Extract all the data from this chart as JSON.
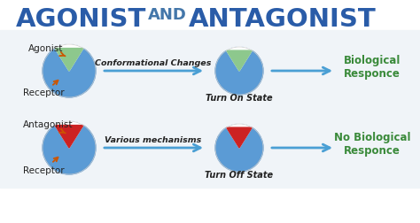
{
  "title_agonist": "AGONIST",
  "title_and": "AND",
  "title_antagonist": "ANTAGONIST",
  "title_color": "#2a5ca8",
  "title_color_and": "#4477aa",
  "bg_color": "#ffffff",
  "circle_color": "#5b9bd5",
  "agonist_triangle_color": "#8dc88d",
  "antagonist_triangle_color": "#cc2222",
  "arrow_color": "#4a9fd4",
  "label_arrow_color": "#cc5500",
  "bio_response_color": "#3a8a3a",
  "text_color_black": "#222222",
  "row1_label_agonist": "Agonist",
  "row1_label_receptor": "Receptor",
  "row2_label_antagonist": "Antagonist",
  "row2_label_receptor": "Receptor",
  "row1_arrow_text": "Conformational Changes",
  "row1_state_text": "Turn On State",
  "row2_arrow_text": "Various mechanisms",
  "row2_state_text": "Turn Off State",
  "bio_text": "Biological\nResponce",
  "no_bio_text": "No Biological\nResponce"
}
